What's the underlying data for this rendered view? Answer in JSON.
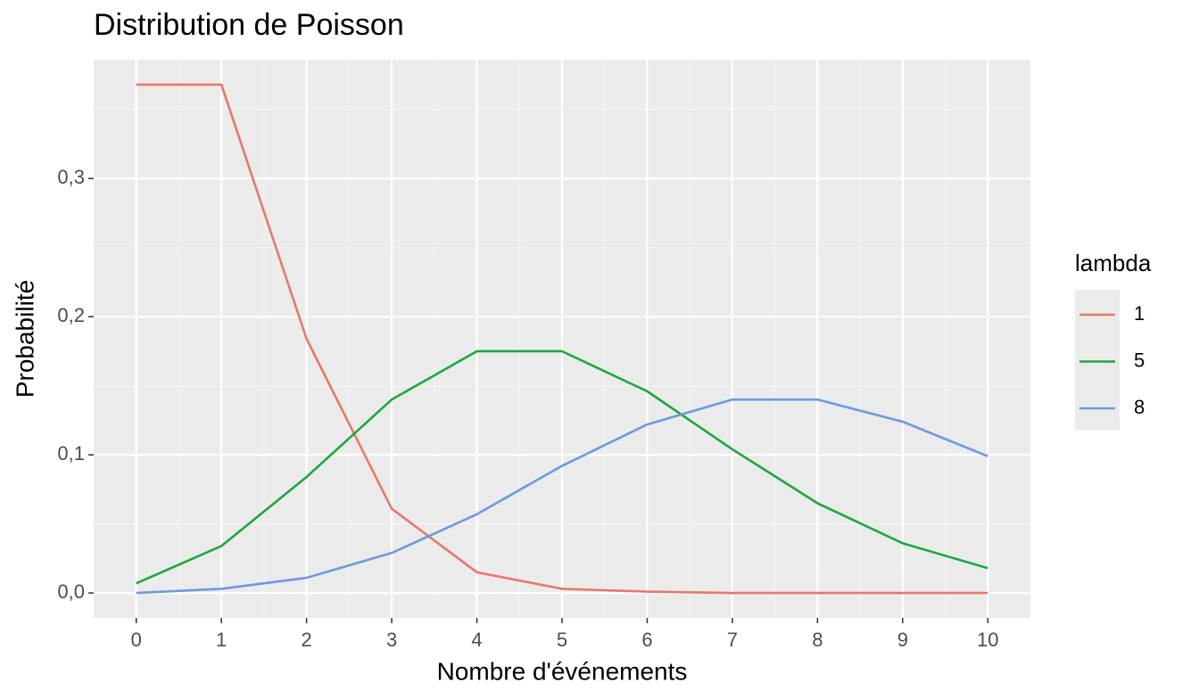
{
  "chart_data": {
    "type": "line",
    "title": "Distribution de Poisson",
    "x_label": "Nombre d'événements",
    "y_label": "Probabilité",
    "legend_title": "lambda",
    "legend": "right",
    "grid": true,
    "x": [
      0,
      1,
      2,
      3,
      4,
      5,
      6,
      7,
      8,
      9,
      10
    ],
    "series": [
      {
        "name": "1",
        "color": "#e8776c",
        "values": [
          0.368,
          0.368,
          0.184,
          0.061,
          0.015,
          0.003,
          0.001,
          0,
          0,
          0,
          0
        ]
      },
      {
        "name": "5",
        "color": "#1ba83f",
        "values": [
          0.007,
          0.034,
          0.084,
          0.14,
          0.175,
          0.175,
          0.146,
          0.104,
          0.065,
          0.036,
          0.018
        ]
      },
      {
        "name": "8",
        "color": "#6b9ae0",
        "values": [
          0.0,
          0.003,
          0.011,
          0.029,
          0.057,
          0.092,
          0.122,
          0.14,
          0.14,
          0.124,
          0.099
        ]
      }
    ],
    "xlim": [
      -0.5,
      10.5
    ],
    "xticks": [
      0,
      1,
      2,
      3,
      4,
      5,
      6,
      7,
      8,
      9,
      10
    ],
    "ylim": [
      -0.018,
      0.386
    ],
    "yticks": [
      {
        "value": 0,
        "label": "0,0"
      },
      {
        "value": 0.1,
        "label": "0,1"
      },
      {
        "value": 0.2,
        "label": "0,2"
      },
      {
        "value": 0.3,
        "label": "0,3"
      }
    ]
  }
}
